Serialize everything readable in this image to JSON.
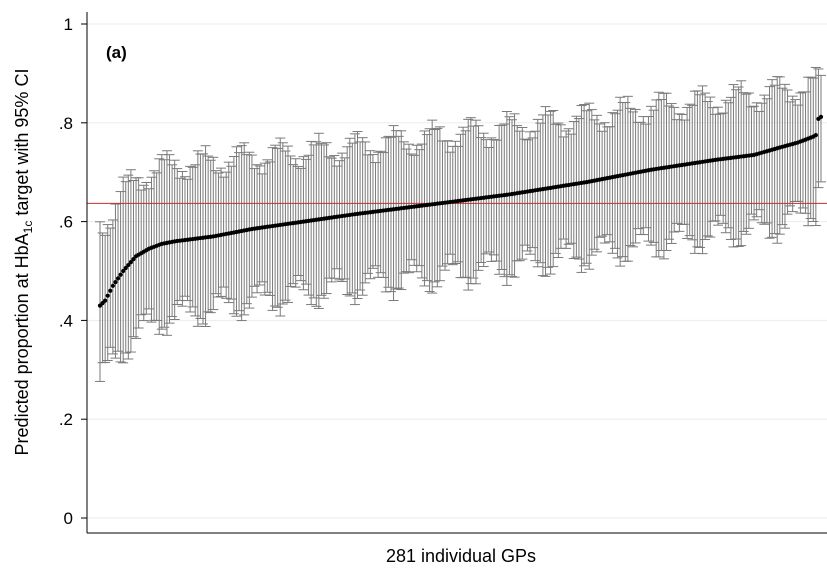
{
  "chart_data": {
    "type": "scatter",
    "subtype": "caterpillar",
    "panel_label": "(a)",
    "xlabel": "281 individual GPs",
    "ylabel_parts": [
      "Predicted proportion at HbA",
      "1c",
      " target with 95% CI"
    ],
    "ylim": [
      0,
      1
    ],
    "yticks": [
      {
        "value": 0,
        "label": "0"
      },
      {
        "value": 0.2,
        "label": ".2"
      },
      {
        "value": 0.4,
        "label": ".4"
      },
      {
        "value": 0.6,
        "label": ".6"
      },
      {
        "value": 0.8,
        "label": ".8"
      },
      {
        "value": 1,
        "label": "1"
      }
    ],
    "n_gps": 281,
    "reference_line": {
      "value": 0.637,
      "color": "#c03030"
    },
    "grid": true,
    "colors": {
      "point": "#000000",
      "ci": "#7a7a7a",
      "grid": "#e6eef2",
      "axis": "#000000"
    },
    "series": [
      {
        "ranks": [
          1,
          3,
          6,
          10,
          15,
          20,
          25,
          30,
          45,
          60,
          80,
          100,
          130,
          160,
          190,
          215,
          240,
          255,
          265,
          272,
          276,
          278,
          279,
          280,
          281
        ],
        "estimates": [
          0.43,
          0.44,
          0.47,
          0.5,
          0.53,
          0.545,
          0.555,
          0.56,
          0.57,
          0.585,
          0.6,
          0.615,
          0.635,
          0.655,
          0.68,
          0.705,
          0.725,
          0.735,
          0.75,
          0.76,
          0.768,
          0.772,
          0.775,
          0.808,
          0.812
        ],
        "ci_lower": [
          0.275,
          0.29,
          0.32,
          0.345,
          0.37,
          0.39,
          0.405,
          0.41,
          0.425,
          0.44,
          0.455,
          0.47,
          0.49,
          0.51,
          0.535,
          0.555,
          0.575,
          0.585,
          0.595,
          0.61,
          0.62,
          0.625,
          0.63,
          0.68,
          0.69
        ],
        "ci_upper": [
          0.595,
          0.6,
          0.625,
          0.66,
          0.685,
          0.7,
          0.71,
          0.715,
          0.72,
          0.73,
          0.74,
          0.75,
          0.77,
          0.79,
          0.81,
          0.83,
          0.845,
          0.855,
          0.865,
          0.87,
          0.872,
          0.875,
          0.877,
          0.89,
          0.89
        ]
      }
    ]
  }
}
